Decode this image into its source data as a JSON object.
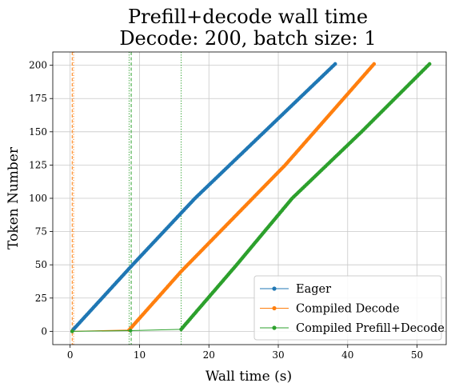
{
  "chart_data": {
    "type": "line",
    "title": [
      "Prefill+decode wall time",
      "Decode: 200, batch size: 1"
    ],
    "xlabel": "Wall time (s)",
    "ylabel": "Token Number",
    "xlim": [
      -2.5,
      54.2
    ],
    "ylim": [
      -10,
      210
    ],
    "xticks": [
      0,
      10,
      20,
      30,
      40,
      50
    ],
    "yticks": [
      0,
      25,
      50,
      75,
      100,
      125,
      150,
      175,
      200
    ],
    "grid": true,
    "legend_position": "lower-right",
    "series": [
      {
        "name": "Eager",
        "color": "#1f77b4",
        "points": [
          [
            0.3,
            0
          ],
          [
            0.4,
            1
          ],
          [
            9.0,
            50
          ],
          [
            18.0,
            100
          ],
          [
            28.0,
            150
          ],
          [
            38.2,
            201
          ]
        ]
      },
      {
        "name": "Compiled Decode",
        "color": "#ff7f0e",
        "points": [
          [
            0.3,
            0
          ],
          [
            8.5,
            1
          ],
          [
            16.0,
            45
          ],
          [
            31.0,
            125
          ],
          [
            43.8,
            201
          ]
        ]
      },
      {
        "name": "Compiled Prefill+Decode",
        "color": "#2ca02c",
        "points": [
          [
            0.3,
            0
          ],
          [
            8.7,
            0.5
          ],
          [
            16.0,
            1.5
          ],
          [
            24.0,
            50
          ],
          [
            32.0,
            100
          ],
          [
            42.0,
            150
          ],
          [
            51.8,
            201
          ]
        ]
      }
    ],
    "vlines": [
      {
        "x": 0.3,
        "style": "dashed",
        "color": "#ff7f0e"
      },
      {
        "x": 0.5,
        "style": "dotted",
        "color": "#ff7f0e"
      },
      {
        "x": 8.5,
        "style": "dotted",
        "color": "#2ca02c"
      },
      {
        "x": 8.8,
        "style": "dashed",
        "color": "#2ca02c"
      },
      {
        "x": 16.0,
        "style": "dotted",
        "color": "#2ca02c"
      }
    ]
  }
}
